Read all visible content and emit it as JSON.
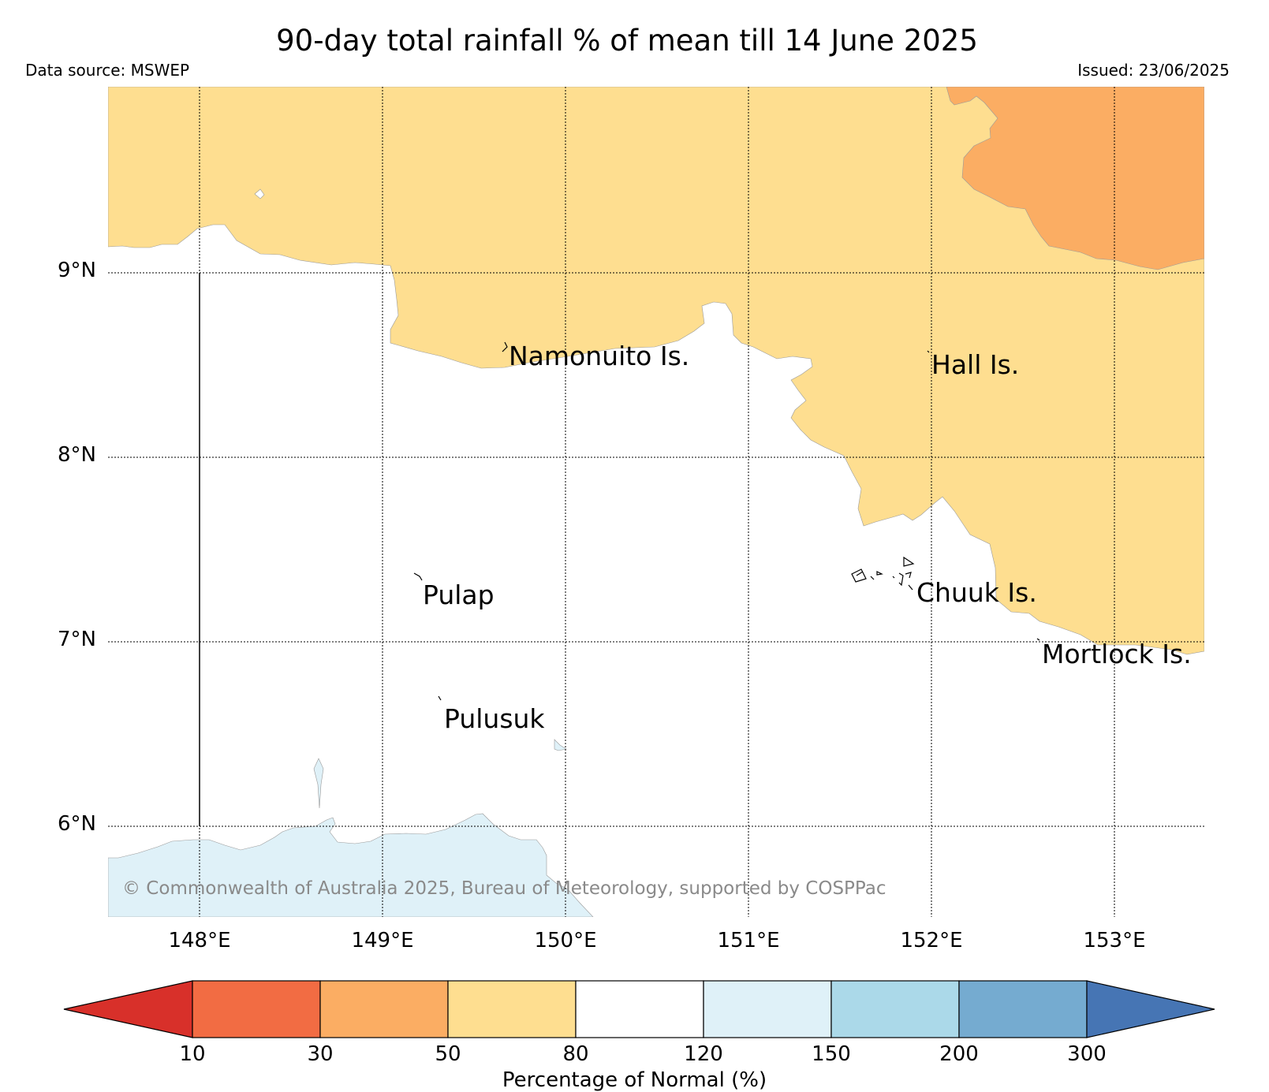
{
  "header": {
    "title": "90-day total rainfall % of mean till 14 June 2025",
    "data_source": "Data source: MSWEP",
    "issued": "Issued: 23/06/2025"
  },
  "map": {
    "latitude_labels": [
      "9°N",
      "8°N",
      "7°N",
      "6°N"
    ],
    "longitude_labels": [
      "148°E",
      "149°E",
      "150°E",
      "151°E",
      "152°E",
      "153°E"
    ],
    "places": {
      "namonuito": "Namonuito Is.",
      "hall": "Hall Is.",
      "pulap": "Pulap",
      "chuuk": "Chuuk Is.",
      "mortlock": "Mortlock Is.",
      "pulusuk": "Pulusuk"
    },
    "copyright": "© Commonwealth of Australia 2025, Bureau of Meteorology, supported by COSPPac",
    "category_colors": {
      "30-50": "#fbad63",
      "50-80": "#fede90",
      "80-120": "#ffffff",
      "120-150": "#dff1f8"
    }
  },
  "colorbar": {
    "label": "Percentage of Normal (%)",
    "ticks": [
      "10",
      "30",
      "50",
      "80",
      "120",
      "150",
      "200",
      "300"
    ],
    "colors": {
      "below_10": "#d8302a",
      "10-30": "#f26c43",
      "30-50": "#fbad63",
      "50-80": "#fede90",
      "80-120": "#ffffff",
      "120-150": "#dff1f8",
      "150-200": "#abd9e9",
      "200-300": "#75abd0",
      "above_300": "#4675b4"
    }
  }
}
